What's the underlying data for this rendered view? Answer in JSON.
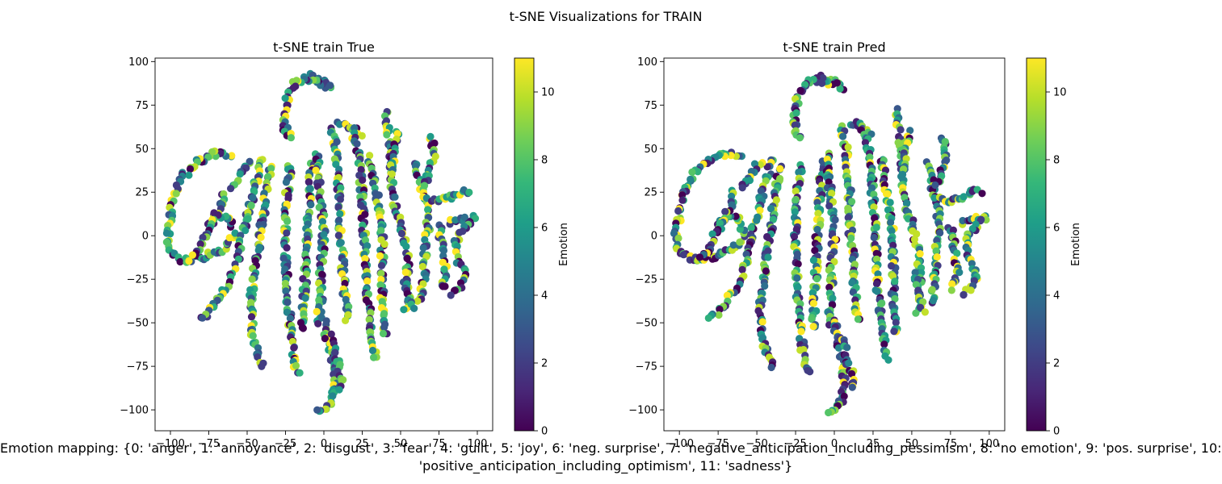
{
  "figure": {
    "suptitle": "t-SNE Visualizations for TRAIN",
    "caption_line1": "Emotion mapping: {0: 'anger', 1: 'annoyance', 2: 'disgust', 3: 'fear', 4: 'guilt', 5: 'joy', 6: 'neg. surprise', 7: 'negative_anticipation_including_pessimism', 8: 'no emotion', 9: 'pos. surprise', 10:",
    "caption_line2": "'positive_anticipation_including_optimism', 11: 'sadness'}"
  },
  "colorbar": {
    "label": "Emotion",
    "range": [
      0,
      11
    ],
    "ticks": [
      0,
      2,
      4,
      6,
      8,
      10
    ],
    "colormap": "viridis",
    "stops": [
      "#440154",
      "#482878",
      "#3e4989",
      "#31688e",
      "#26828e",
      "#1f9e89",
      "#35b779",
      "#6ece58",
      "#b5de2b",
      "#fde725"
    ]
  },
  "chart_data": [
    {
      "type": "scatter",
      "title": "t-SNE train True",
      "xlabel": "",
      "ylabel": "",
      "xlim": [
        -110,
        110
      ],
      "ylim": [
        -112,
        102
      ],
      "xticks": [
        -100,
        -75,
        -50,
        -25,
        0,
        25,
        50,
        75,
        100
      ],
      "yticks": [
        -100,
        -75,
        -50,
        -25,
        0,
        25,
        50,
        75,
        100
      ],
      "grid": false,
      "color_by": "Emotion",
      "seed": 17
    },
    {
      "type": "scatter",
      "title": "t-SNE train Pred",
      "xlabel": "",
      "ylabel": "",
      "xlim": [
        -110,
        110
      ],
      "ylim": [
        -112,
        102
      ],
      "xticks": [
        -100,
        -75,
        -50,
        -25,
        0,
        25,
        50,
        75,
        100
      ],
      "yticks": [
        -100,
        -75,
        -50,
        -25,
        0,
        25,
        50,
        75,
        100
      ],
      "grid": false,
      "color_by": "Emotion",
      "seed": 91
    }
  ],
  "clusters": [
    [
      [
        -8,
        92
      ],
      [
        2,
        88
      ],
      [
        5,
        85
      ],
      [
        -10,
        90
      ],
      [
        -18,
        88
      ],
      [
        -22,
        82
      ],
      [
        -25,
        75
      ],
      [
        -26,
        65
      ],
      [
        -24,
        58
      ],
      [
        -20,
        56
      ]
    ],
    [
      [
        -60,
        47
      ],
      [
        -72,
        47
      ],
      [
        -82,
        42
      ],
      [
        -92,
        34
      ],
      [
        -98,
        22
      ],
      [
        -100,
        10
      ],
      [
        -102,
        0
      ],
      [
        -100,
        -10
      ],
      [
        -93,
        -14
      ],
      [
        -80,
        -13
      ],
      [
        -66,
        -8
      ],
      [
        -58,
        0
      ],
      [
        -62,
        10
      ],
      [
        -70,
        12
      ],
      [
        -76,
        5
      ]
    ],
    [
      [
        -65,
        25
      ],
      [
        -68,
        15
      ],
      [
        -73,
        8
      ],
      [
        -82,
        -10
      ],
      [
        -88,
        -14
      ]
    ],
    [
      [
        -40,
        44
      ],
      [
        -43,
        35
      ],
      [
        -47,
        22
      ],
      [
        -52,
        5
      ],
      [
        -56,
        -12
      ],
      [
        -62,
        -28
      ],
      [
        -70,
        -38
      ],
      [
        -76,
        -45
      ],
      [
        -82,
        -46
      ]
    ],
    [
      [
        -48,
        43
      ],
      [
        -55,
        34
      ],
      [
        -60,
        26
      ]
    ],
    [
      [
        -35,
        40
      ],
      [
        -38,
        25
      ],
      [
        -40,
        10
      ],
      [
        -42,
        -2
      ],
      [
        -45,
        -20
      ],
      [
        -48,
        -40
      ],
      [
        -46,
        -60
      ],
      [
        -42,
        -72
      ],
      [
        -38,
        -76
      ]
    ],
    [
      [
        -22,
        40
      ],
      [
        -24,
        25
      ],
      [
        -25,
        10
      ],
      [
        -25,
        -10
      ],
      [
        -24,
        -30
      ],
      [
        -22,
        -50
      ],
      [
        -20,
        -70
      ],
      [
        -16,
        -80
      ]
    ],
    [
      [
        -8,
        42
      ],
      [
        -9,
        30
      ],
      [
        -10,
        15
      ],
      [
        -11,
        0
      ],
      [
        -12,
        -20
      ],
      [
        -13,
        -40
      ],
      [
        -14,
        -55
      ]
    ],
    [
      [
        -4,
        48
      ],
      [
        -4,
        35
      ],
      [
        -2,
        20
      ],
      [
        0,
        0
      ],
      [
        -2,
        -20
      ],
      [
        -2,
        -40
      ],
      [
        -5,
        -52
      ]
    ],
    [
      [
        5,
        62
      ],
      [
        8,
        48
      ],
      [
        9,
        35
      ],
      [
        10,
        20
      ],
      [
        10,
        5
      ],
      [
        12,
        -10
      ],
      [
        13,
        -30
      ],
      [
        15,
        -45
      ],
      [
        15,
        -50
      ]
    ],
    [
      [
        0,
        -48
      ],
      [
        2,
        -60
      ],
      [
        5,
        -70
      ],
      [
        7,
        -85
      ],
      [
        5,
        -95
      ],
      [
        0,
        -100
      ],
      [
        -5,
        -102
      ]
    ],
    [
      [
        5,
        -58
      ],
      [
        8,
        -70
      ],
      [
        12,
        -82
      ],
      [
        10,
        -90
      ]
    ],
    [
      [
        10,
        65
      ],
      [
        20,
        62
      ],
      [
        25,
        57
      ]
    ],
    [
      [
        18,
        62
      ],
      [
        22,
        50
      ],
      [
        24,
        35
      ],
      [
        25,
        20
      ],
      [
        26,
        5
      ],
      [
        27,
        -10
      ],
      [
        28,
        -30
      ],
      [
        30,
        -45
      ],
      [
        32,
        -60
      ],
      [
        34,
        -72
      ]
    ],
    [
      [
        40,
        72
      ],
      [
        42,
        55
      ],
      [
        44,
        40
      ],
      [
        45,
        25
      ],
      [
        48,
        12
      ],
      [
        52,
        0
      ],
      [
        54,
        -10
      ],
      [
        55,
        -25
      ],
      [
        56,
        -40
      ],
      [
        52,
        -44
      ]
    ],
    [
      [
        30,
        45
      ],
      [
        33,
        30
      ],
      [
        36,
        15
      ],
      [
        38,
        0
      ],
      [
        38,
        -20
      ],
      [
        38,
        -40
      ],
      [
        40,
        -58
      ]
    ],
    [
      [
        60,
        42
      ],
      [
        63,
        30
      ],
      [
        66,
        20
      ],
      [
        68,
        5
      ],
      [
        66,
        -10
      ],
      [
        65,
        -25
      ],
      [
        62,
        -40
      ]
    ],
    [
      [
        48,
        60
      ],
      [
        46,
        50
      ],
      [
        44,
        35
      ]
    ],
    [
      [
        70,
        57
      ],
      [
        72,
        45
      ],
      [
        68,
        35
      ],
      [
        66,
        28
      ]
    ],
    [
      [
        66,
        22
      ],
      [
        75,
        20
      ],
      [
        82,
        22
      ],
      [
        90,
        25
      ],
      [
        96,
        25
      ]
    ],
    [
      [
        82,
        8
      ],
      [
        90,
        10
      ],
      [
        98,
        10
      ],
      [
        88,
        2
      ],
      [
        85,
        -5
      ],
      [
        88,
        -15
      ],
      [
        92,
        -22
      ],
      [
        88,
        -30
      ],
      [
        82,
        -35
      ]
    ],
    [
      [
        75,
        5
      ],
      [
        78,
        -10
      ],
      [
        80,
        -22
      ],
      [
        76,
        -32
      ]
    ],
    [
      [
        52,
        -22
      ],
      [
        55,
        -33
      ],
      [
        58,
        -44
      ]
    ]
  ]
}
